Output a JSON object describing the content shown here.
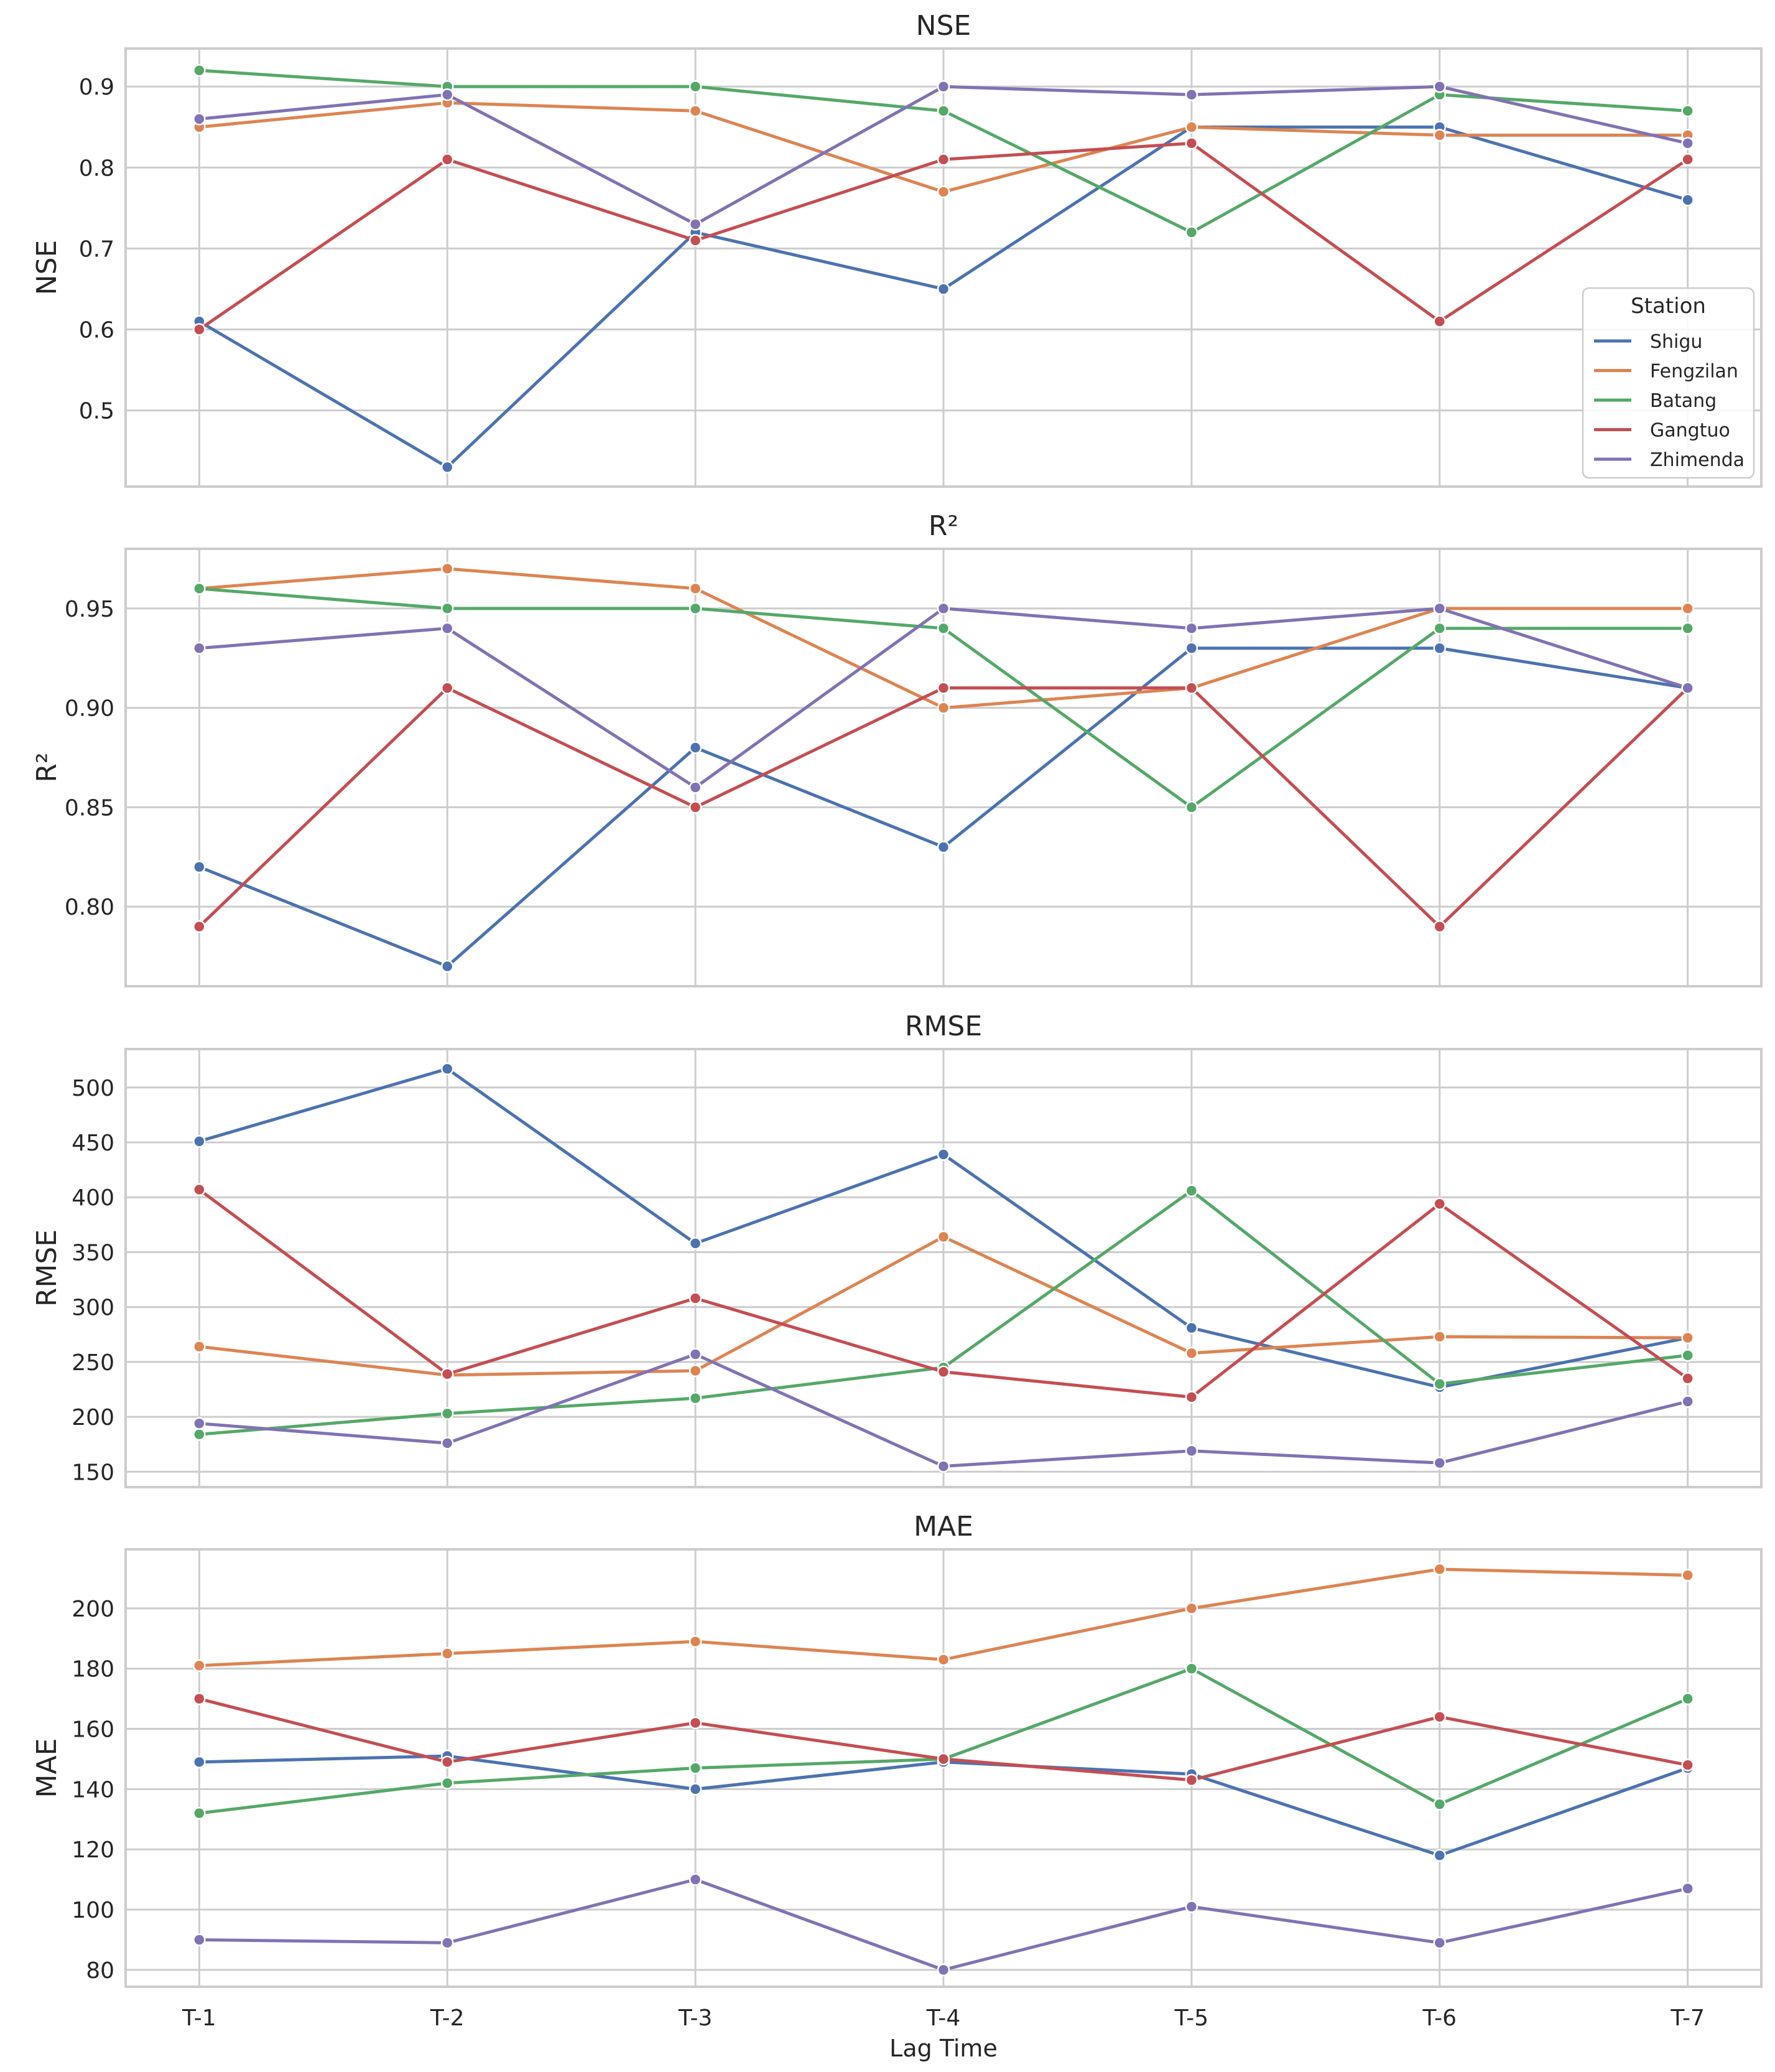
{
  "xlabel": "Lag Time",
  "categories": [
    "T-1",
    "T-2",
    "T-3",
    "T-4",
    "T-5",
    "T-6",
    "T-7"
  ],
  "legend": {
    "title": "Station",
    "entries": [
      "Shigu",
      "Fengzilan",
      "Batang",
      "Gangtuo",
      "Zhimenda"
    ]
  },
  "colors": {
    "Shigu": "#4c72b0",
    "Fengzilan": "#dd8452",
    "Batang": "#55a868",
    "Gangtuo": "#c44e52",
    "Zhimenda": "#8172b3"
  },
  "chart_data": [
    {
      "type": "line",
      "title": "NSE",
      "ylabel": "NSE",
      "xlabel": "",
      "ylim": [
        0.406,
        0.947
      ],
      "yticks": [
        "0.5",
        "0.6",
        "0.7",
        "0.8",
        "0.9"
      ],
      "grid": true,
      "legend": "center-right",
      "categories": [
        "T-1",
        "T-2",
        "T-3",
        "T-4",
        "T-5",
        "T-6",
        "T-7"
      ],
      "series": [
        {
          "name": "Shigu",
          "values": [
            0.61,
            0.43,
            0.72,
            0.65,
            0.85,
            0.85,
            0.76
          ]
        },
        {
          "name": "Fengzilan",
          "values": [
            0.85,
            0.88,
            0.87,
            0.77,
            0.85,
            0.84,
            0.84
          ]
        },
        {
          "name": "Batang",
          "values": [
            0.92,
            0.9,
            0.9,
            0.87,
            0.72,
            0.89,
            0.87
          ]
        },
        {
          "name": "Gangtuo",
          "values": [
            0.6,
            0.81,
            0.71,
            0.81,
            0.83,
            0.61,
            0.81
          ]
        },
        {
          "name": "Zhimenda",
          "values": [
            0.86,
            0.89,
            0.73,
            0.9,
            0.89,
            0.9,
            0.83
          ]
        }
      ]
    },
    {
      "type": "line",
      "title": "R²",
      "ylabel": "R²",
      "xlabel": "",
      "ylim": [
        0.76,
        0.98
      ],
      "yticks": [
        "0.80",
        "0.85",
        "0.90",
        "0.95"
      ],
      "grid": true,
      "legend": "none",
      "categories": [
        "T-1",
        "T-2",
        "T-3",
        "T-4",
        "T-5",
        "T-6",
        "T-7"
      ],
      "series": [
        {
          "name": "Shigu",
          "values": [
            0.82,
            0.77,
            0.88,
            0.83,
            0.93,
            0.93,
            0.91
          ]
        },
        {
          "name": "Fengzilan",
          "values": [
            0.96,
            0.97,
            0.96,
            0.9,
            0.91,
            0.95,
            0.95
          ]
        },
        {
          "name": "Batang",
          "values": [
            0.96,
            0.95,
            0.95,
            0.94,
            0.85,
            0.94,
            0.94
          ]
        },
        {
          "name": "Gangtuo",
          "values": [
            0.79,
            0.91,
            0.85,
            0.91,
            0.91,
            0.79,
            0.91
          ]
        },
        {
          "name": "Zhimenda",
          "values": [
            0.93,
            0.94,
            0.86,
            0.95,
            0.94,
            0.95,
            0.91
          ]
        }
      ]
    },
    {
      "type": "line",
      "title": "RMSE",
      "ylabel": "RMSE",
      "xlabel": "",
      "ylim": [
        136,
        535
      ],
      "yticks": [
        "150",
        "200",
        "250",
        "300",
        "350",
        "400",
        "450",
        "500"
      ],
      "grid": true,
      "legend": "none",
      "categories": [
        "T-1",
        "T-2",
        "T-3",
        "T-4",
        "T-5",
        "T-6",
        "T-7"
      ],
      "series": [
        {
          "name": "Shigu",
          "values": [
            451,
            517,
            358,
            439,
            281,
            227,
            272
          ]
        },
        {
          "name": "Fengzilan",
          "values": [
            264,
            238,
            242,
            364,
            258,
            273,
            272
          ]
        },
        {
          "name": "Batang",
          "values": [
            184,
            203,
            217,
            245,
            406,
            230,
            256
          ]
        },
        {
          "name": "Gangtuo",
          "values": [
            407,
            239,
            308,
            241,
            218,
            394,
            235
          ]
        },
        {
          "name": "Zhimenda",
          "values": [
            194,
            176,
            257,
            155,
            169,
            158,
            214
          ]
        }
      ]
    },
    {
      "type": "line",
      "title": "MAE",
      "ylabel": "MAE",
      "xlabel": "Lag Time",
      "ylim": [
        74.4,
        219.6
      ],
      "yticks": [
        "80",
        "100",
        "120",
        "140",
        "160",
        "180",
        "200"
      ],
      "grid": true,
      "legend": "none",
      "categories": [
        "T-1",
        "T-2",
        "T-3",
        "T-4",
        "T-5",
        "T-6",
        "T-7"
      ],
      "series": [
        {
          "name": "Shigu",
          "values": [
            149,
            151,
            140,
            149,
            145,
            118,
            147
          ]
        },
        {
          "name": "Fengzilan",
          "values": [
            181,
            185,
            189,
            183,
            200,
            213,
            211
          ]
        },
        {
          "name": "Batang",
          "values": [
            132,
            142,
            147,
            150,
            180,
            135,
            170
          ]
        },
        {
          "name": "Gangtuo",
          "values": [
            170,
            149,
            162,
            150,
            143,
            164,
            148
          ]
        },
        {
          "name": "Zhimenda",
          "values": [
            90,
            89,
            110,
            80,
            101,
            89,
            107
          ]
        }
      ]
    }
  ]
}
